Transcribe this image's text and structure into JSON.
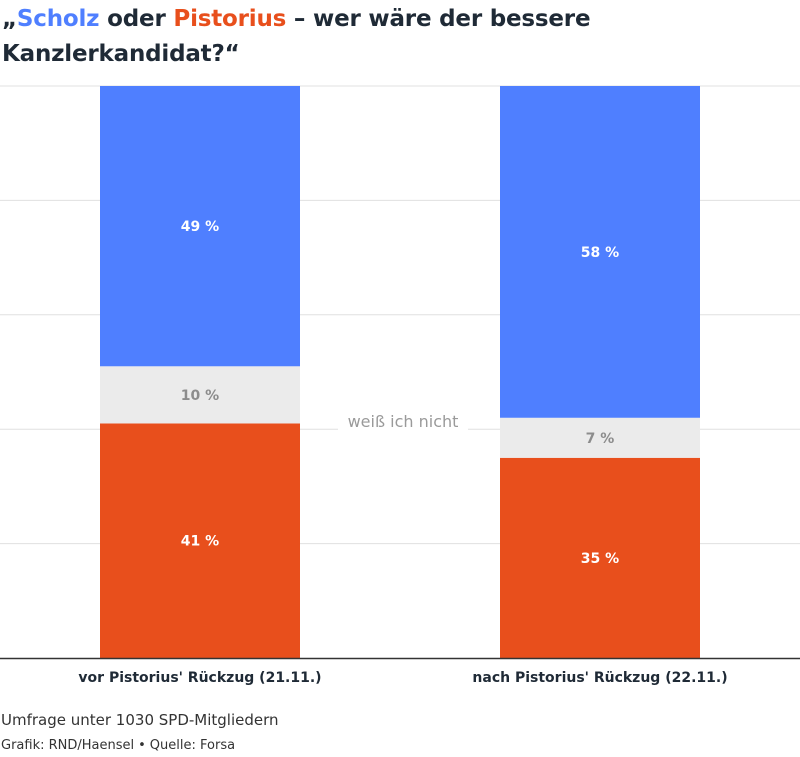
{
  "title": {
    "open_quote": "„",
    "name_a": "Scholz",
    "connector": " oder ",
    "name_b": "Pistorius",
    "rest": " – wer wäre der bessere Kanzlerkandidat?“"
  },
  "colors": {
    "scholz": "#4f7fff",
    "unknown": "#ebebeb",
    "pistorius": "#e84f1c",
    "grid": "#e0e0e0",
    "axis": "#333333"
  },
  "chart_data": {
    "type": "bar",
    "stacked": true,
    "orientation": "vertical",
    "categories": [
      "vor Pistorius' Rückzug (21.11.)",
      "nach Pistorius' Rückzug (22.11.)"
    ],
    "series": [
      {
        "name": "Pistorius",
        "values": [
          41,
          35
        ],
        "labels": [
          "41 %",
          "35 %"
        ]
      },
      {
        "name": "weiß ich nicht",
        "values": [
          10,
          7
        ],
        "labels": [
          "10 %",
          "7 %"
        ]
      },
      {
        "name": "Scholz",
        "values": [
          49,
          58
        ],
        "labels": [
          "49 %",
          "58 %"
        ]
      }
    ],
    "ylim": [
      0,
      100
    ],
    "grid": true,
    "annotation": "weiß ich nicht"
  },
  "footer": {
    "subtitle": "Umfrage unter 1030 SPD-Mitgliedern",
    "grafik": "Grafik: RND/Haensel",
    "separator": "•",
    "quelle": "Quelle: Forsa"
  }
}
